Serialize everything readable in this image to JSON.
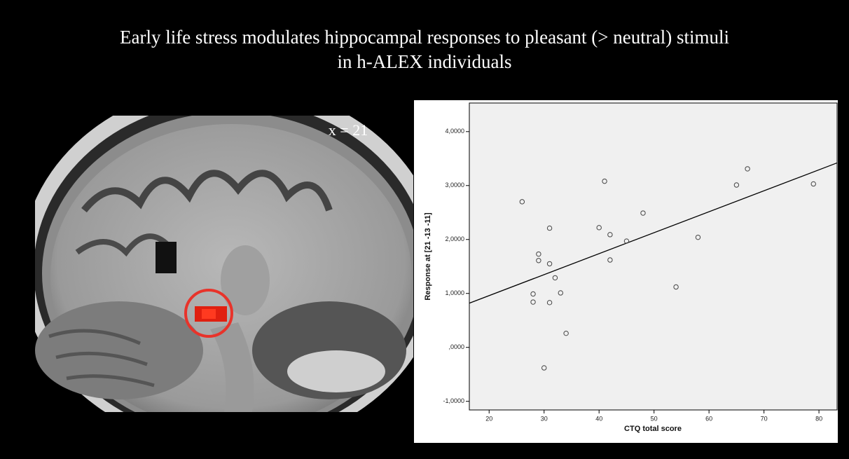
{
  "chart_data": {
    "type": "scatter",
    "title": [
      "Early life stress modulates hippocampal responses to pleasant (> neutral) stimuli",
      "in h-ALEX individuals"
    ],
    "annotation": "x = 21",
    "xlabel": "CTQ total score",
    "ylabel": "Response at [21 -13 -11]",
    "series": [
      {
        "color": "#444444",
        "x": [
          26,
          29,
          29,
          31,
          31,
          32,
          28,
          28,
          33,
          31,
          34,
          30,
          41,
          40,
          42,
          42,
          45,
          48,
          54,
          58,
          65,
          67,
          79
        ],
        "values": [
          2.7,
          1.73,
          1.61,
          2.21,
          1.55,
          1.29,
          0.99,
          0.84,
          1.01,
          0.83,
          0.26,
          -0.38,
          3.08,
          2.22,
          2.09,
          1.62,
          1.97,
          2.49,
          1.12,
          2.04,
          3.01,
          3.31,
          3.03
        ]
      }
    ],
    "fit_line": {
      "color": "#000000",
      "x": [
        16.4,
        83.3
      ],
      "y": [
        0.82,
        3.42
      ]
    },
    "xlim": [
      16.4,
      83.3
    ],
    "ylim": [
      -1.16,
      4.53
    ],
    "xticks": [
      20,
      30,
      40,
      50,
      60,
      70,
      80
    ],
    "yticks": [
      {
        "value": -1,
        "label": "-1,0000"
      },
      {
        "value": 0,
        "label": ",0000"
      },
      {
        "value": 1,
        "label": "1,0000"
      },
      {
        "value": 2,
        "label": "2,0000"
      },
      {
        "value": 3,
        "label": "3,0000"
      },
      {
        "value": 4,
        "label": "4,0000"
      }
    ]
  }
}
